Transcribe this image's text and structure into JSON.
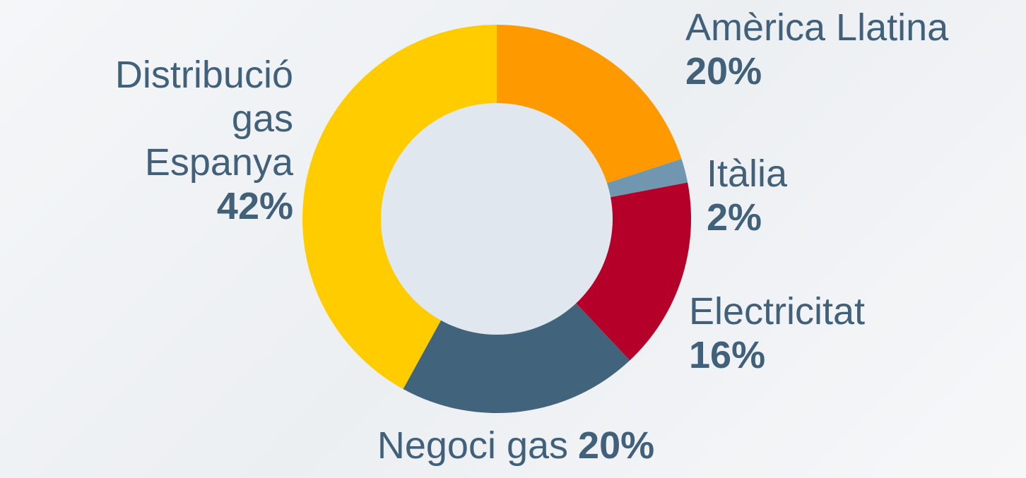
{
  "chart_data": {
    "type": "donut",
    "categories": [
      "Amèrica Llatina",
      "Itàlia",
      "Electricitat",
      "Negoci gas",
      "Distribució gas Espanya"
    ],
    "values": [
      20,
      2,
      16,
      20,
      42
    ],
    "value_labels": [
      "20%",
      "2%",
      "16%",
      "20%",
      "42%"
    ],
    "colors": [
      "#ff9900",
      "#7096b0",
      "#b5002a",
      "#41647c",
      "#ffcc00"
    ]
  }
}
